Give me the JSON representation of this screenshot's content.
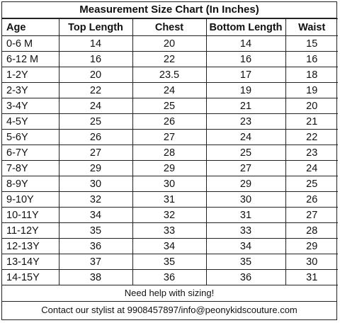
{
  "title": "Measurement Size Chart (In Inches)",
  "columns": [
    "Age",
    "Top Length",
    "Chest",
    "Bottom Length",
    "Waist"
  ],
  "rows": [
    [
      "0-6 M",
      "14",
      "20",
      "14",
      "15"
    ],
    [
      "6-12 M",
      "16",
      "22",
      "16",
      "16"
    ],
    [
      "1-2Y",
      "20",
      "23.5",
      "17",
      "18"
    ],
    [
      "2-3Y",
      "22",
      "24",
      "19",
      "19"
    ],
    [
      "3-4Y",
      "24",
      "25",
      "21",
      "20"
    ],
    [
      "4-5Y",
      "25",
      "26",
      "23",
      "21"
    ],
    [
      "5-6Y",
      "26",
      "27",
      "24",
      "22"
    ],
    [
      "6-7Y",
      "27",
      "28",
      "25",
      "23"
    ],
    [
      "7-8Y",
      "29",
      "29",
      "27",
      "24"
    ],
    [
      "8-9Y",
      "30",
      "30",
      "29",
      "25"
    ],
    [
      "9-10Y",
      "32",
      "31",
      "30",
      "26"
    ],
    [
      "10-11Y",
      "34",
      "32",
      "31",
      "27"
    ],
    [
      "11-12Y",
      "35",
      "33",
      "33",
      "28"
    ],
    [
      "12-13Y",
      "36",
      "34",
      "34",
      "29"
    ],
    [
      "13-14Y",
      "37",
      "35",
      "35",
      "30"
    ],
    [
      "14-15Y",
      "38",
      "36",
      "36",
      "31"
    ]
  ],
  "note": "Need help with sizing!",
  "contact": "Contact our stylist at 9908457897/info@peonykidscouture.com"
}
